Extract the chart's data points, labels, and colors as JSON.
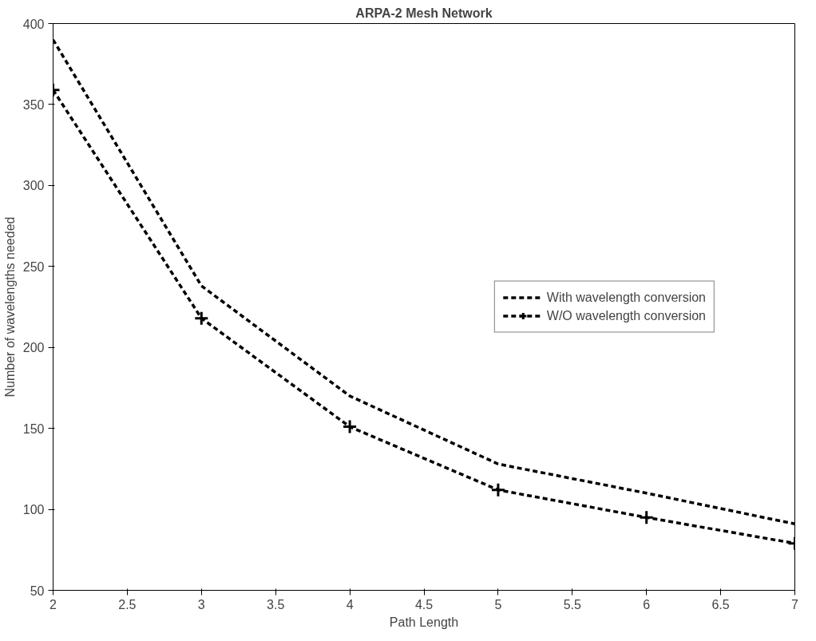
{
  "chart_data": {
    "type": "line",
    "title": "ARPA-2 Mesh Network",
    "xlabel": "Path Length",
    "ylabel": "Number of wavelengths needed",
    "x": [
      2,
      3,
      4,
      5,
      6,
      7
    ],
    "series": [
      {
        "name": "With wavelength conversion",
        "color": "#000000",
        "values": [
          390,
          238,
          170,
          128,
          110,
          91
        ],
        "marker": "none",
        "line_style": "dashed"
      },
      {
        "name": "W/O wavelength conversion",
        "color": "#000000",
        "values": [
          359,
          218,
          151,
          112,
          95,
          79
        ],
        "marker": "cross",
        "line_style": "dashed"
      }
    ],
    "xlim": [
      2,
      7
    ],
    "ylim": [
      50,
      400
    ],
    "xticks": [
      2,
      2.5,
      3,
      3.5,
      4,
      4.5,
      5,
      5.5,
      6,
      6.5,
      7
    ],
    "yticks": [
      50,
      100,
      150,
      200,
      250,
      300,
      350,
      400
    ],
    "grid": false,
    "legend": "right"
  }
}
